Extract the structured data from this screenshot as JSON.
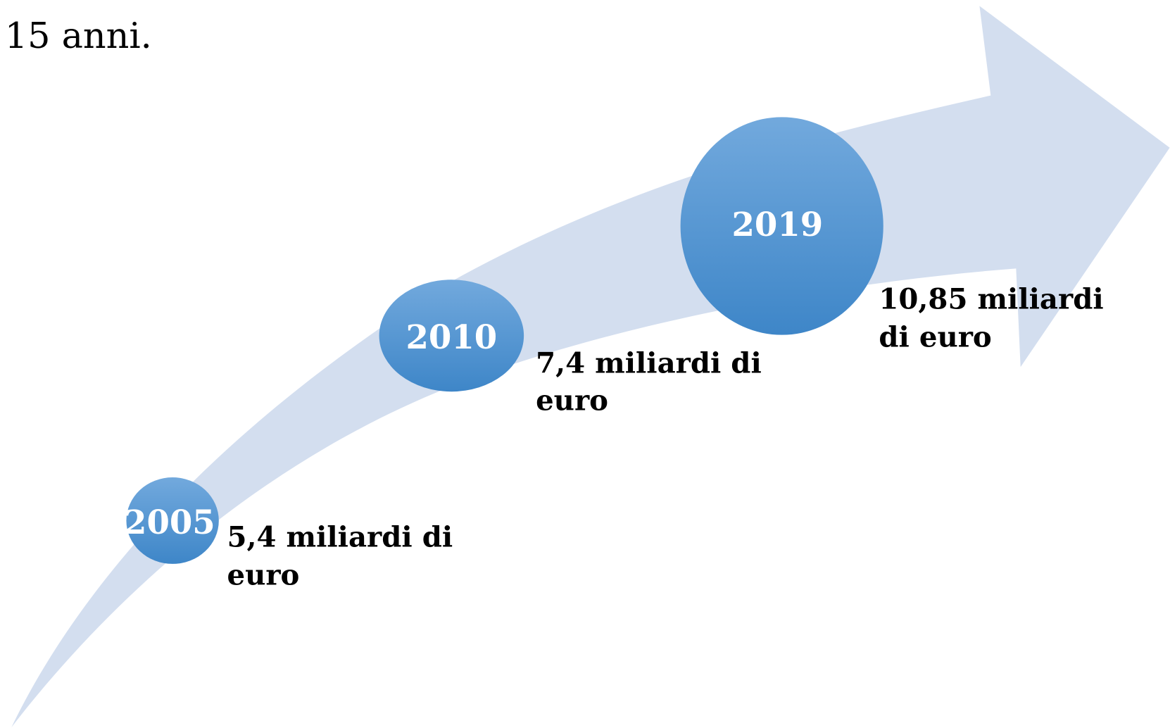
{
  "header": {
    "text": "15 anni."
  },
  "nodes": [
    {
      "year": "2005",
      "label": [
        "5,4 miliardi di",
        "euro"
      ]
    },
    {
      "year": "2010",
      "label": [
        "7,4 miliardi di",
        "euro"
      ]
    },
    {
      "year": "2019",
      "label": [
        "10,85 miliardi",
        "di euro"
      ]
    }
  ]
}
